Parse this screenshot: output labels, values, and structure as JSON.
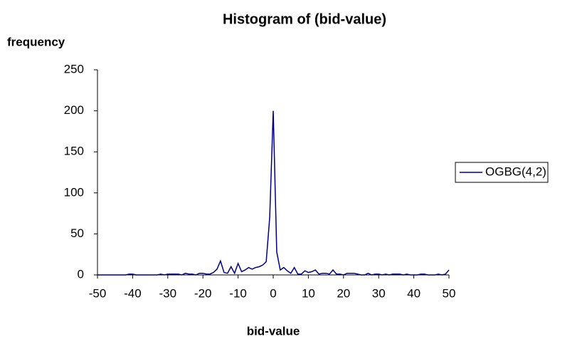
{
  "chart_data": {
    "type": "line",
    "title": "Histogram of (bid-value)",
    "y_label": "frequency",
    "x_label": "bid-value",
    "x": [
      -50,
      -49,
      -48,
      -47,
      -46,
      -45,
      -44,
      -43,
      -42,
      -41,
      -40,
      -39,
      -38,
      -37,
      -36,
      -35,
      -34,
      -33,
      -32,
      -31,
      -30,
      -29,
      -28,
      -27,
      -26,
      -25,
      -24,
      -23,
      -22,
      -21,
      -20,
      -19,
      -18,
      -17,
      -16,
      -15,
      -14,
      -13,
      -12,
      -11,
      -10,
      -9,
      -8,
      -7,
      -6,
      -5,
      -4,
      -3,
      -2,
      -1,
      0,
      1,
      2,
      3,
      4,
      5,
      6,
      7,
      8,
      9,
      10,
      11,
      12,
      13,
      14,
      15,
      16,
      17,
      18,
      19,
      20,
      21,
      22,
      23,
      24,
      25,
      26,
      27,
      28,
      29,
      30,
      31,
      32,
      33,
      34,
      35,
      36,
      37,
      38,
      39,
      40,
      41,
      42,
      43,
      44,
      45,
      46,
      47,
      48,
      49,
      50
    ],
    "series": [
      {
        "name": "OGBG(4,2)",
        "color": "#000080",
        "values": [
          0,
          0,
          0,
          0,
          0,
          0,
          0,
          0,
          0,
          1,
          1,
          0,
          0,
          0,
          0,
          0,
          0,
          0,
          1,
          0,
          1,
          1,
          1,
          1,
          0,
          2,
          1,
          1,
          0,
          2,
          2,
          1,
          1,
          3,
          7,
          17,
          3,
          2,
          10,
          2,
          14,
          4,
          6,
          9,
          7,
          9,
          10,
          12,
          16,
          70,
          200,
          28,
          6,
          9,
          5,
          2,
          9,
          1,
          1,
          5,
          3,
          4,
          6,
          1,
          2,
          2,
          1,
          6,
          1,
          1,
          0,
          2,
          2,
          2,
          1,
          0,
          0,
          2,
          0,
          1,
          1,
          0,
          1,
          0,
          1,
          1,
          1,
          0,
          1,
          0,
          0,
          0,
          1,
          1,
          0,
          0,
          0,
          1,
          0,
          1,
          6
        ]
      }
    ],
    "xlim": [
      -50,
      50
    ],
    "xticks": [
      -50,
      -40,
      -30,
      -20,
      -10,
      0,
      10,
      20,
      30,
      40,
      50
    ],
    "ylim": [
      0,
      250
    ],
    "yticks": [
      0,
      50,
      100,
      150,
      200,
      250
    ],
    "legend": "right"
  }
}
